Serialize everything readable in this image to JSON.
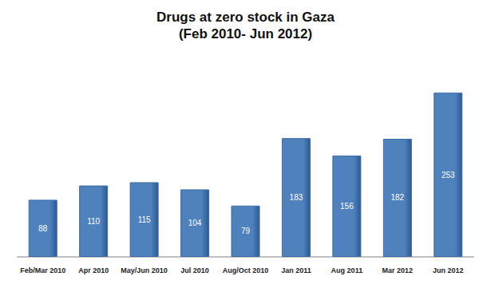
{
  "chart_data": {
    "type": "bar",
    "title": "Drugs at zero stock in Gaza",
    "subtitle": "(Feb 2010- Jun 2012)",
    "categories": [
      "Feb/Mar 2010",
      "Apr 2010",
      "May/Jun 2010",
      "Jul 2010",
      "Aug/Oct 2010",
      "Jan 2011",
      "Aug 2011",
      "Mar 2012",
      "Jun 2012"
    ],
    "values": [
      88,
      110,
      115,
      104,
      79,
      183,
      156,
      182,
      253
    ],
    "color": "#4f81bd",
    "data_labels": true,
    "grid": false,
    "tick_labels": "x"
  }
}
